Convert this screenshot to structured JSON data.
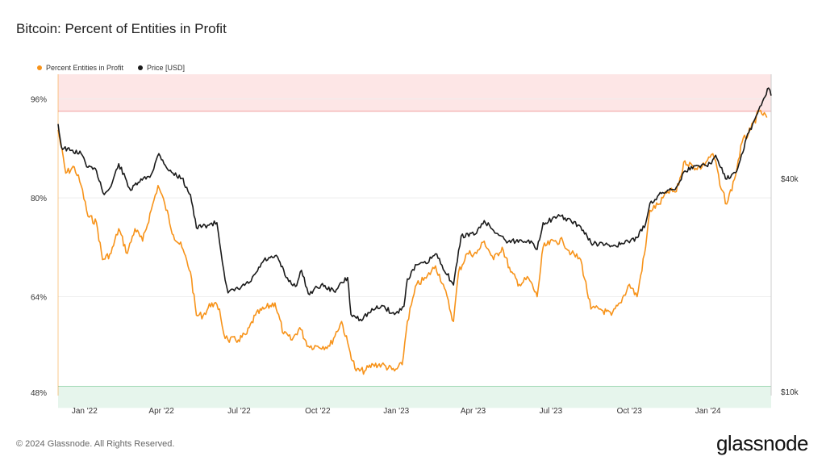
{
  "title": "Bitcoin: Percent of Entities in Profit",
  "legend": [
    {
      "label": "Percent Entities in Profit",
      "color": "#f7931a"
    },
    {
      "label": "Price [USD]",
      "color": "#1a1a1a"
    }
  ],
  "footer": "© 2024 Glassnode. All Rights Reserved.",
  "brand": "glassnode",
  "colors": {
    "profit": "#f7931a",
    "price": "#1a1a1a",
    "upper_zone": "#fde6e6",
    "lower_zone": "#e6f5ec"
  },
  "chart_data": {
    "type": "line",
    "title": "Bitcoin: Percent of Entities in Profit",
    "x_ticks": [
      "Jan '22",
      "Apr '22",
      "Jul '22",
      "Oct '22",
      "Jan '23",
      "Apr '23",
      "Jul '23",
      "Oct '23",
      "Jan '24"
    ],
    "y_left_ticks": [
      "96%",
      "80%",
      "64%",
      "48%"
    ],
    "y_right_ticks": [
      "$40k",
      "$10k"
    ],
    "y_left_range": [
      48,
      100
    ],
    "y_right_scale": "log",
    "bands": [
      {
        "name": "upper",
        "from": 94,
        "to": 100
      },
      {
        "name": "lower",
        "from": 46,
        "to": 49.5
      }
    ],
    "x_range": [
      "2021-12-01",
      "2024-03-15"
    ],
    "series": [
      {
        "name": "Percent Entities in Profit",
        "axis": "left",
        "points": [
          [
            "2021-12-01",
            91
          ],
          [
            "2021-12-10",
            84
          ],
          [
            "2021-12-20",
            85
          ],
          [
            "2021-12-28",
            82
          ],
          [
            "2022-01-05",
            77
          ],
          [
            "2022-01-15",
            76
          ],
          [
            "2022-01-22",
            70
          ],
          [
            "2022-02-01",
            71
          ],
          [
            "2022-02-10",
            75
          ],
          [
            "2022-02-20",
            71
          ],
          [
            "2022-03-01",
            75
          ],
          [
            "2022-03-10",
            73
          ],
          [
            "2022-03-20",
            78
          ],
          [
            "2022-03-28",
            82
          ],
          [
            "2022-04-05",
            79
          ],
          [
            "2022-04-15",
            74
          ],
          [
            "2022-04-25",
            72
          ],
          [
            "2022-05-05",
            68
          ],
          [
            "2022-05-12",
            61
          ],
          [
            "2022-05-20",
            61
          ],
          [
            "2022-05-30",
            63
          ],
          [
            "2022-06-08",
            62
          ],
          [
            "2022-06-13",
            58
          ],
          [
            "2022-06-18",
            57
          ],
          [
            "2022-06-30",
            57
          ],
          [
            "2022-07-10",
            58
          ],
          [
            "2022-07-20",
            61
          ],
          [
            "2022-07-30",
            62
          ],
          [
            "2022-08-12",
            63
          ],
          [
            "2022-08-22",
            58
          ],
          [
            "2022-09-01",
            57
          ],
          [
            "2022-09-10",
            59
          ],
          [
            "2022-09-20",
            56
          ],
          [
            "2022-10-01",
            56
          ],
          [
            "2022-10-15",
            56
          ],
          [
            "2022-10-29",
            60
          ],
          [
            "2022-11-08",
            55
          ],
          [
            "2022-11-15",
            52
          ],
          [
            "2022-11-25",
            52
          ],
          [
            "2022-12-05",
            53
          ],
          [
            "2022-12-15",
            53
          ],
          [
            "2022-12-30",
            52
          ],
          [
            "2023-01-08",
            53
          ],
          [
            "2023-01-14",
            60
          ],
          [
            "2023-01-25",
            66
          ],
          [
            "2023-02-05",
            67
          ],
          [
            "2023-02-16",
            69
          ],
          [
            "2023-02-25",
            66
          ],
          [
            "2023-03-09",
            60
          ],
          [
            "2023-03-15",
            68
          ],
          [
            "2023-03-25",
            71
          ],
          [
            "2023-04-05",
            71
          ],
          [
            "2023-04-14",
            73
          ],
          [
            "2023-04-25",
            70
          ],
          [
            "2023-05-05",
            72
          ],
          [
            "2023-05-15",
            68
          ],
          [
            "2023-05-25",
            66
          ],
          [
            "2023-06-05",
            67
          ],
          [
            "2023-06-15",
            64
          ],
          [
            "2023-06-22",
            72
          ],
          [
            "2023-07-05",
            73
          ],
          [
            "2023-07-15",
            73
          ],
          [
            "2023-07-25",
            71
          ],
          [
            "2023-08-05",
            70
          ],
          [
            "2023-08-17",
            62
          ],
          [
            "2023-08-28",
            62
          ],
          [
            "2023-09-10",
            61
          ],
          [
            "2023-09-20",
            63
          ],
          [
            "2023-10-01",
            66
          ],
          [
            "2023-10-10",
            64
          ],
          [
            "2023-10-20",
            72
          ],
          [
            "2023-10-25",
            78
          ],
          [
            "2023-11-05",
            79
          ],
          [
            "2023-11-15",
            81
          ],
          [
            "2023-11-25",
            81
          ],
          [
            "2023-12-05",
            86
          ],
          [
            "2023-12-15",
            85
          ],
          [
            "2023-12-25",
            85
          ],
          [
            "2024-01-05",
            87
          ],
          [
            "2024-01-10",
            86
          ],
          [
            "2024-01-15",
            82
          ],
          [
            "2024-01-23",
            79
          ],
          [
            "2024-02-01",
            83
          ],
          [
            "2024-02-10",
            89
          ],
          [
            "2024-02-20",
            91
          ],
          [
            "2024-03-01",
            94
          ],
          [
            "2024-03-10",
            93
          ]
        ]
      },
      {
        "name": "Price [USD]",
        "axis": "right",
        "points": [
          [
            "2021-12-01",
            57000
          ],
          [
            "2021-12-05",
            49000
          ],
          [
            "2021-12-15",
            48000
          ],
          [
            "2021-12-28",
            47000
          ],
          [
            "2022-01-05",
            43000
          ],
          [
            "2022-01-15",
            42000
          ],
          [
            "2022-01-24",
            36000
          ],
          [
            "2022-02-01",
            38000
          ],
          [
            "2022-02-10",
            44000
          ],
          [
            "2022-02-24",
            37000
          ],
          [
            "2022-03-05",
            39000
          ],
          [
            "2022-03-20",
            41000
          ],
          [
            "2022-03-29",
            47000
          ],
          [
            "2022-04-10",
            42000
          ],
          [
            "2022-04-25",
            40000
          ],
          [
            "2022-05-05",
            36000
          ],
          [
            "2022-05-12",
            29000
          ],
          [
            "2022-05-25",
            29500
          ],
          [
            "2022-06-05",
            30000
          ],
          [
            "2022-06-13",
            22000
          ],
          [
            "2022-06-18",
            19000
          ],
          [
            "2022-06-30",
            19500
          ],
          [
            "2022-07-15",
            20500
          ],
          [
            "2022-07-30",
            23500
          ],
          [
            "2022-08-15",
            24000
          ],
          [
            "2022-08-25",
            21000
          ],
          [
            "2022-09-05",
            19800
          ],
          [
            "2022-09-12",
            22000
          ],
          [
            "2022-09-20",
            18900
          ],
          [
            "2022-10-05",
            20000
          ],
          [
            "2022-10-20",
            19200
          ],
          [
            "2022-11-05",
            21000
          ],
          [
            "2022-11-09",
            16500
          ],
          [
            "2022-11-20",
            16000
          ],
          [
            "2022-12-05",
            17000
          ],
          [
            "2022-12-15",
            17500
          ],
          [
            "2022-12-30",
            16500
          ],
          [
            "2023-01-10",
            17400
          ],
          [
            "2023-01-14",
            20800
          ],
          [
            "2023-01-25",
            22800
          ],
          [
            "2023-02-05",
            23000
          ],
          [
            "2023-02-16",
            24500
          ],
          [
            "2023-03-09",
            20000
          ],
          [
            "2023-03-18",
            27500
          ],
          [
            "2023-04-05",
            28000
          ],
          [
            "2023-04-14",
            30400
          ],
          [
            "2023-04-25",
            28500
          ],
          [
            "2023-05-12",
            26500
          ],
          [
            "2023-06-05",
            26800
          ],
          [
            "2023-06-15",
            25200
          ],
          [
            "2023-06-22",
            30000
          ],
          [
            "2023-07-13",
            31300
          ],
          [
            "2023-08-05",
            29200
          ],
          [
            "2023-08-17",
            26300
          ],
          [
            "2023-09-10",
            25800
          ],
          [
            "2023-09-25",
            26200
          ],
          [
            "2023-10-10",
            27200
          ],
          [
            "2023-10-20",
            29800
          ],
          [
            "2023-10-25",
            34000
          ],
          [
            "2023-11-09",
            36500
          ],
          [
            "2023-11-25",
            37800
          ],
          [
            "2023-12-05",
            42000
          ],
          [
            "2023-12-20",
            43500
          ],
          [
            "2024-01-05",
            44000
          ],
          [
            "2024-01-10",
            46500
          ],
          [
            "2024-01-23",
            39800
          ],
          [
            "2024-02-05",
            42800
          ],
          [
            "2024-02-15",
            52000
          ],
          [
            "2024-02-28",
            61000
          ],
          [
            "2024-03-05",
            66000
          ],
          [
            "2024-03-12",
            72000
          ],
          [
            "2024-03-15",
            68500
          ]
        ]
      }
    ]
  }
}
